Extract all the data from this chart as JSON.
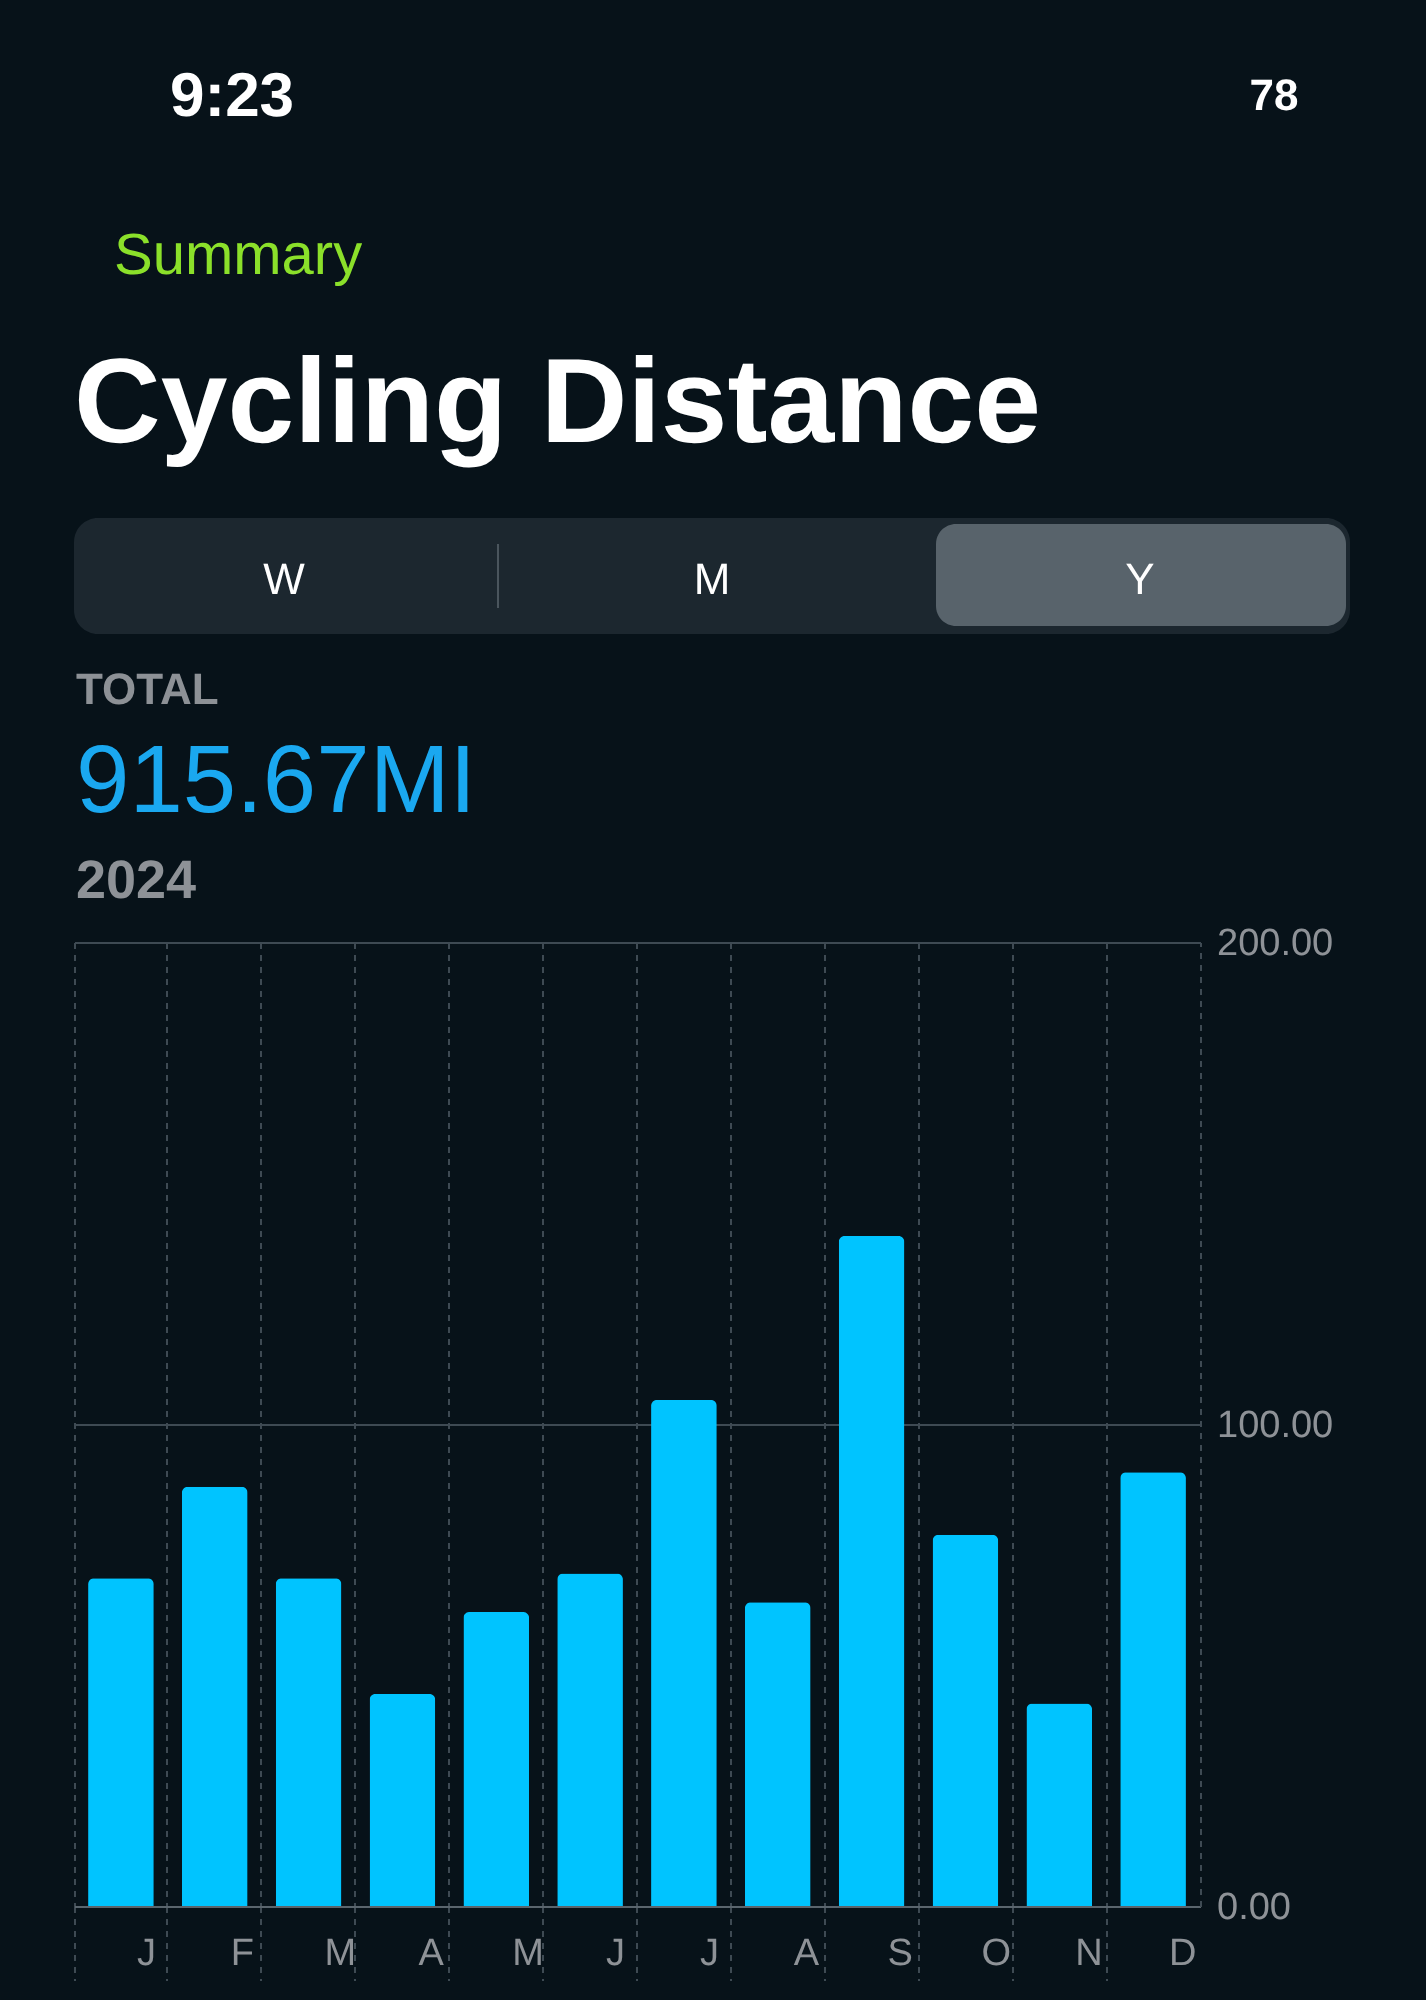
{
  "chart_data": {
    "type": "bar",
    "title": "Cycling Distance",
    "annotations": [
      "9:23",
      "78",
      "Summary",
      "W",
      "M",
      "Y",
      "TOTAL",
      "915.67MI",
      "2024"
    ],
    "categories": [
      "J",
      "F",
      "M",
      "A",
      "M",
      "J",
      "J",
      "A",
      "S",
      "O",
      "N",
      "D"
    ],
    "values": [
      68,
      87,
      68,
      44,
      61,
      69,
      105,
      63,
      139,
      77,
      42,
      90
    ],
    "color": "#00c4ff",
    "ylim": [
      0,
      200
    ],
    "yticks": [
      {
        "value": 0,
        "label": "0.00"
      },
      {
        "value": 100,
        "label": "100.00"
      },
      {
        "value": 200,
        "label": "200.00"
      }
    ],
    "grid": true
  }
}
